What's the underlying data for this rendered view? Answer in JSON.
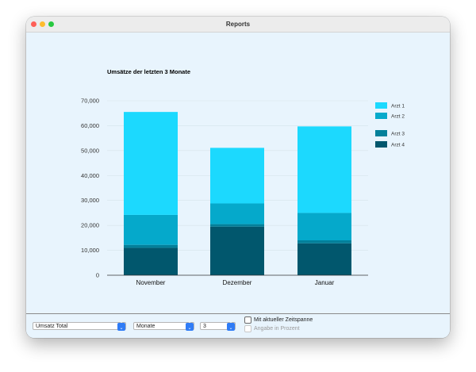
{
  "window": {
    "title": "Reports"
  },
  "chart_data": {
    "type": "bar",
    "stacked": true,
    "title": "Umsätze der letzten 3 Monate",
    "categories": [
      "November",
      "Dezember",
      "Januar"
    ],
    "series": [
      {
        "name": "Arzt 4",
        "values": [
          11000,
          19500,
          12800
        ],
        "color": "#01576d"
      },
      {
        "name": "Arzt 3",
        "values": [
          1200,
          1000,
          1200
        ],
        "color": "#03809a"
      },
      {
        "name": "Arzt 2",
        "values": [
          12000,
          8300,
          11000
        ],
        "color": "#05a9cb"
      },
      {
        "name": "Arzt 1",
        "values": [
          41300,
          22300,
          34700
        ],
        "color": "#1cd9fe"
      }
    ],
    "legend_order": [
      "Arzt 1",
      "Arzt 2",
      "Arzt 3",
      "Arzt 4"
    ],
    "ylim": [
      0,
      70000
    ],
    "yticks": [
      0,
      10000,
      20000,
      30000,
      40000,
      50000,
      60000,
      70000
    ],
    "ytick_labels": [
      "0",
      "10,000",
      "20,000",
      "30,000",
      "40,000",
      "50,000",
      "60,000",
      "70,000"
    ],
    "xlabel": "",
    "ylabel": "",
    "legend_position": "right"
  },
  "footer": {
    "metric_select": "Umsatz Total",
    "period_select": "Monate",
    "count_select": "3",
    "checkbox_current_period": {
      "label": "Mit aktueller Zeitspanne",
      "checked": false
    },
    "checkbox_percent": {
      "label": "Angabe in Prozent",
      "checked": false,
      "enabled": false
    }
  }
}
